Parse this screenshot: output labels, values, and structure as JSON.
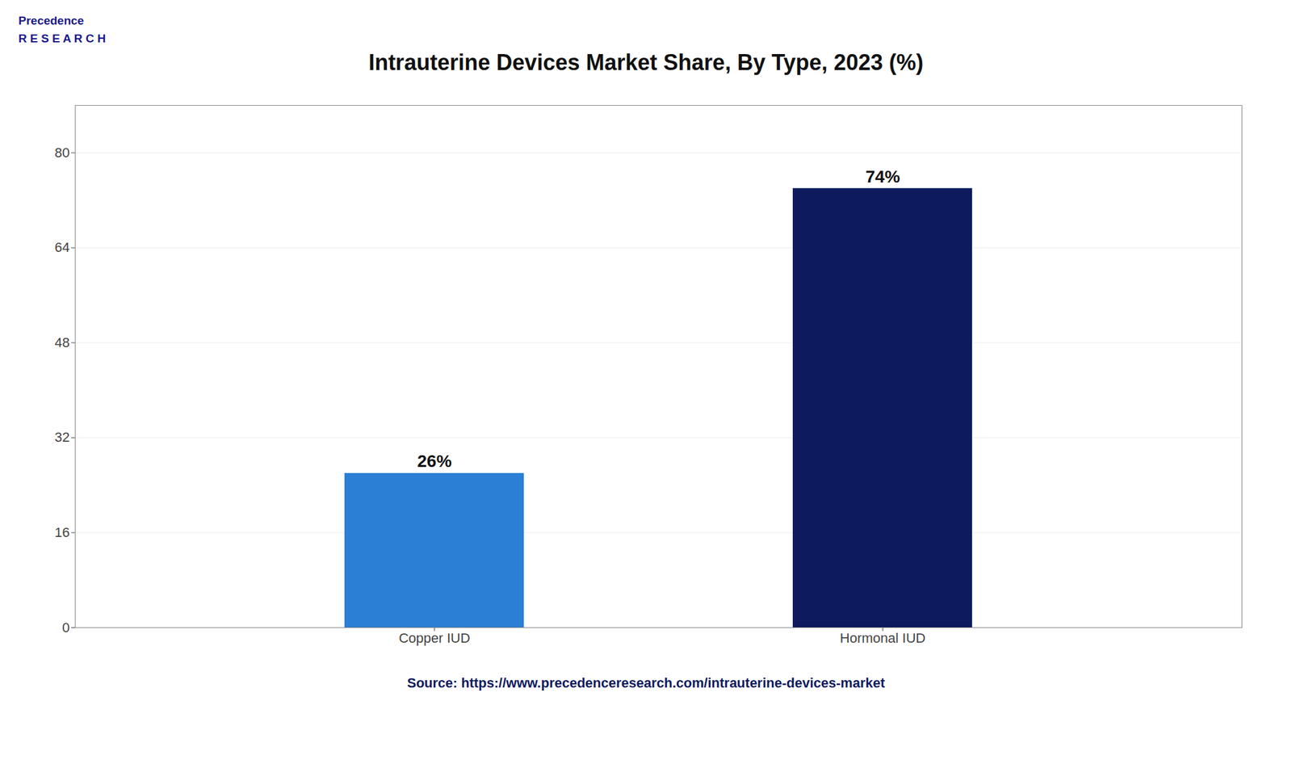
{
  "chart_data": {
    "type": "bar",
    "title": "Intrauterine Devices Market Share, By Type, 2023 (%)",
    "categories": [
      "Copper IUD",
      "Hormonal IUD"
    ],
    "values": [
      26,
      74
    ],
    "value_labels": [
      "26%",
      "74%"
    ],
    "data_labels": true,
    "colors": [
      "#2B7FD4",
      "#0D1B5E"
    ],
    "ylim": [
      0,
      88
    ],
    "yticks": [
      0,
      16,
      32,
      48,
      64,
      80
    ],
    "grid": true,
    "annotations": [
      "Precedence",
      "R E S E A R C H",
      "Source: https://www.precedenceresearch.com/intrauterine-devices-market"
    ]
  }
}
